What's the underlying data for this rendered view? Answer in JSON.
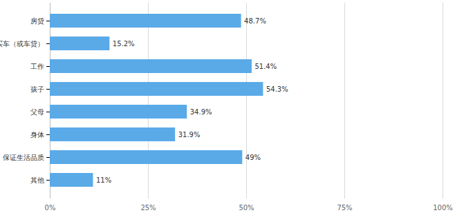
{
  "chart_data": {
    "type": "bar",
    "orientation": "horizontal",
    "categories": [
      "房贷",
      "买车（或车贷）",
      "工作",
      "孩子",
      "父母",
      "身体",
      "保证生活品质",
      "其他"
    ],
    "values": [
      48.7,
      15.2,
      51.4,
      54.3,
      34.9,
      31.9,
      49,
      11
    ],
    "value_labels": [
      "48.7%",
      "15.2%",
      "51.4%",
      "54.3%",
      "34.9%",
      "31.9%",
      "49%",
      "11%"
    ],
    "data_labels": true,
    "color": "#5aaae8",
    "xlim": [
      0,
      100
    ],
    "xticks": [
      {
        "value": 0,
        "label": "0%"
      },
      {
        "value": 25,
        "label": "25%"
      },
      {
        "value": 50,
        "label": "50%"
      },
      {
        "value": 75,
        "label": "75%"
      },
      {
        "value": 100,
        "label": "100%"
      }
    ],
    "grid": true
  }
}
